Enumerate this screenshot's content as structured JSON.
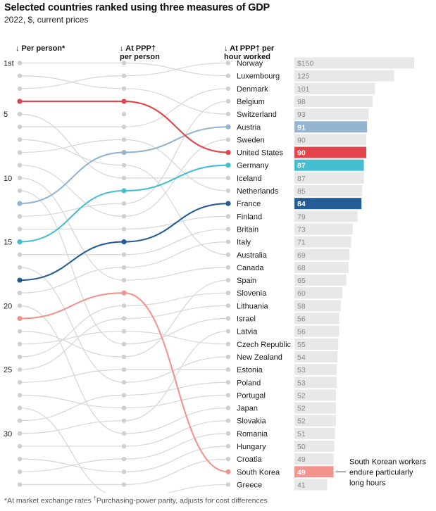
{
  "title": "Selected countries ranked using three measures of GDP",
  "subtitle": "2022, $, current prices",
  "footnote": {
    "star": "*At market exchange rates ",
    "dagger_mark": "†",
    "dagger_text": "Purchasing-power parity, adjusts for cost differences"
  },
  "chart_data": {
    "type": "slope-bump",
    "columns": [
      {
        "lines": [
          "↓ Per person*"
        ]
      },
      {
        "lines": [
          "↓ At PPP†",
          "per person"
        ]
      },
      {
        "lines": [
          "↓ At PPP† per",
          "hour worked"
        ]
      }
    ],
    "rank_labels": [
      {
        "rank": 1,
        "label": "1st"
      },
      {
        "rank": 5,
        "label": "5"
      },
      {
        "rank": 10,
        "label": "10"
      },
      {
        "rank": 15,
        "label": "15"
      },
      {
        "rank": 20,
        "label": "20"
      },
      {
        "rank": 25,
        "label": "25"
      },
      {
        "rank": 30,
        "label": "30"
      }
    ],
    "countries": [
      {
        "name": "Norway",
        "value": 150,
        "value_label": "$150",
        "rank_per_person": 3,
        "rank_ppp_person": 2
      },
      {
        "name": "Luxembourg",
        "value": 125,
        "value_label": "125",
        "rank_per_person": 1,
        "rank_ppp_person": 1
      },
      {
        "name": "Denmark",
        "value": 101,
        "value_label": "101",
        "rank_per_person": 6,
        "rank_ppp_person": 6
      },
      {
        "name": "Belgium",
        "value": 98,
        "value_label": "98",
        "rank_per_person": 13,
        "rank_ppp_person": 12
      },
      {
        "name": "Switzerland",
        "value": 93,
        "value_label": "93",
        "rank_per_person": 2,
        "rank_ppp_person": 3
      },
      {
        "name": "Austria",
        "value": 91,
        "value_label": "91",
        "rank_per_person": 12,
        "rank_ppp_person": 8
      },
      {
        "name": "Sweden",
        "value": 90,
        "value_label": "90",
        "rank_per_person": 9,
        "rank_ppp_person": 13
      },
      {
        "name": "United States",
        "value": 90,
        "value_label": "90",
        "rank_per_person": 4,
        "rank_ppp_person": 4
      },
      {
        "name": "Germany",
        "value": 87,
        "value_label": "87",
        "rank_per_person": 15,
        "rank_ppp_person": 11
      },
      {
        "name": "Iceland",
        "value": 87,
        "value_label": "87",
        "rank_per_person": 5,
        "rank_ppp_person": 10
      },
      {
        "name": "Netherlands",
        "value": 85,
        "value_label": "85",
        "rank_per_person": 8,
        "rank_ppp_person": 7
      },
      {
        "name": "France",
        "value": 84,
        "value_label": "84",
        "rank_per_person": 18,
        "rank_ppp_person": 15
      },
      {
        "name": "Finland",
        "value": 79,
        "value_label": "79",
        "rank_per_person": 14,
        "rank_ppp_person": 14
      },
      {
        "name": "Britain",
        "value": 73,
        "value_label": "73",
        "rank_per_person": 16,
        "rank_ppp_person": 16
      },
      {
        "name": "Italy",
        "value": 71,
        "value_label": "71",
        "rank_per_person": 19,
        "rank_ppp_person": 17
      },
      {
        "name": "Australia",
        "value": 69,
        "value_label": "69",
        "rank_per_person": 7,
        "rank_ppp_person": 9
      },
      {
        "name": "Canada",
        "value": 68,
        "value_label": "68",
        "rank_per_person": 10,
        "rank_ppp_person": 18
      },
      {
        "name": "Spain",
        "value": 65,
        "value_label": "65",
        "rank_per_person": 22,
        "rank_ppp_person": 24
      },
      {
        "name": "Slovenia",
        "value": 60,
        "value_label": "60",
        "rank_per_person": 24,
        "rank_ppp_person": 20
      },
      {
        "name": "Lithuania",
        "value": 58,
        "value_label": "58",
        "rank_per_person": 25,
        "rank_ppp_person": 21
      },
      {
        "name": "Israel",
        "value": 56,
        "value_label": "56",
        "rank_per_person": 11,
        "rank_ppp_person": 23
      },
      {
        "name": "Latvia",
        "value": 56,
        "value_label": "56",
        "rank_per_person": 30,
        "rank_ppp_person": 29
      },
      {
        "name": "Czech Republic",
        "value": 55,
        "value_label": "55",
        "rank_per_person": 23,
        "rank_ppp_person": 22
      },
      {
        "name": "New Zealand",
        "value": 54,
        "value_label": "54",
        "rank_per_person": 17,
        "rank_ppp_person": 26
      },
      {
        "name": "Estonia",
        "value": 53,
        "value_label": "53",
        "rank_per_person": 26,
        "rank_ppp_person": 25
      },
      {
        "name": "Poland",
        "value": 53,
        "value_label": "53",
        "rank_per_person": 29,
        "rank_ppp_person": 27
      },
      {
        "name": "Portugal",
        "value": 52,
        "value_label": "52",
        "rank_per_person": 27,
        "rank_ppp_person": 28
      },
      {
        "name": "Japan",
        "value": 52,
        "value_label": "52",
        "rank_per_person": 20,
        "rank_ppp_person": 30
      },
      {
        "name": "Slovakia",
        "value": 52,
        "value_label": "52",
        "rank_per_person": 31,
        "rank_ppp_person": 31
      },
      {
        "name": "Romania",
        "value": 51,
        "value_label": "51",
        "rank_per_person": 33,
        "rank_ppp_person": 32
      },
      {
        "name": "Hungary",
        "value": 50,
        "value_label": "50",
        "rank_per_person": 32,
        "rank_ppp_person": 33
      },
      {
        "name": "Croatia",
        "value": 49,
        "value_label": "49",
        "rank_per_person": 34,
        "rank_ppp_person": 34
      },
      {
        "name": "South Korea",
        "value": 49,
        "value_label": "49",
        "rank_per_person": 21,
        "rank_ppp_person": 19
      },
      {
        "name": "Greece",
        "value": 41,
        "value_label": "41",
        "rank_per_person": 28,
        "rank_ppp_person": 35
      }
    ],
    "highlights": [
      {
        "country": "United States",
        "color": "#e3434a"
      },
      {
        "country": "Austria",
        "color": "#94b4cf"
      },
      {
        "country": "Germany",
        "color": "#45bfd0"
      },
      {
        "country": "France",
        "color": "#255c96"
      },
      {
        "country": "South Korea",
        "color": "#f3938e"
      }
    ],
    "gray_line_color": "#d6d6d6",
    "bar_color": "#e8e8e8",
    "xlim": [
      0,
      150
    ],
    "annotation": {
      "country": "South Korea",
      "lines": [
        "South Korean workers",
        "endure particularly",
        "long hours"
      ]
    }
  }
}
